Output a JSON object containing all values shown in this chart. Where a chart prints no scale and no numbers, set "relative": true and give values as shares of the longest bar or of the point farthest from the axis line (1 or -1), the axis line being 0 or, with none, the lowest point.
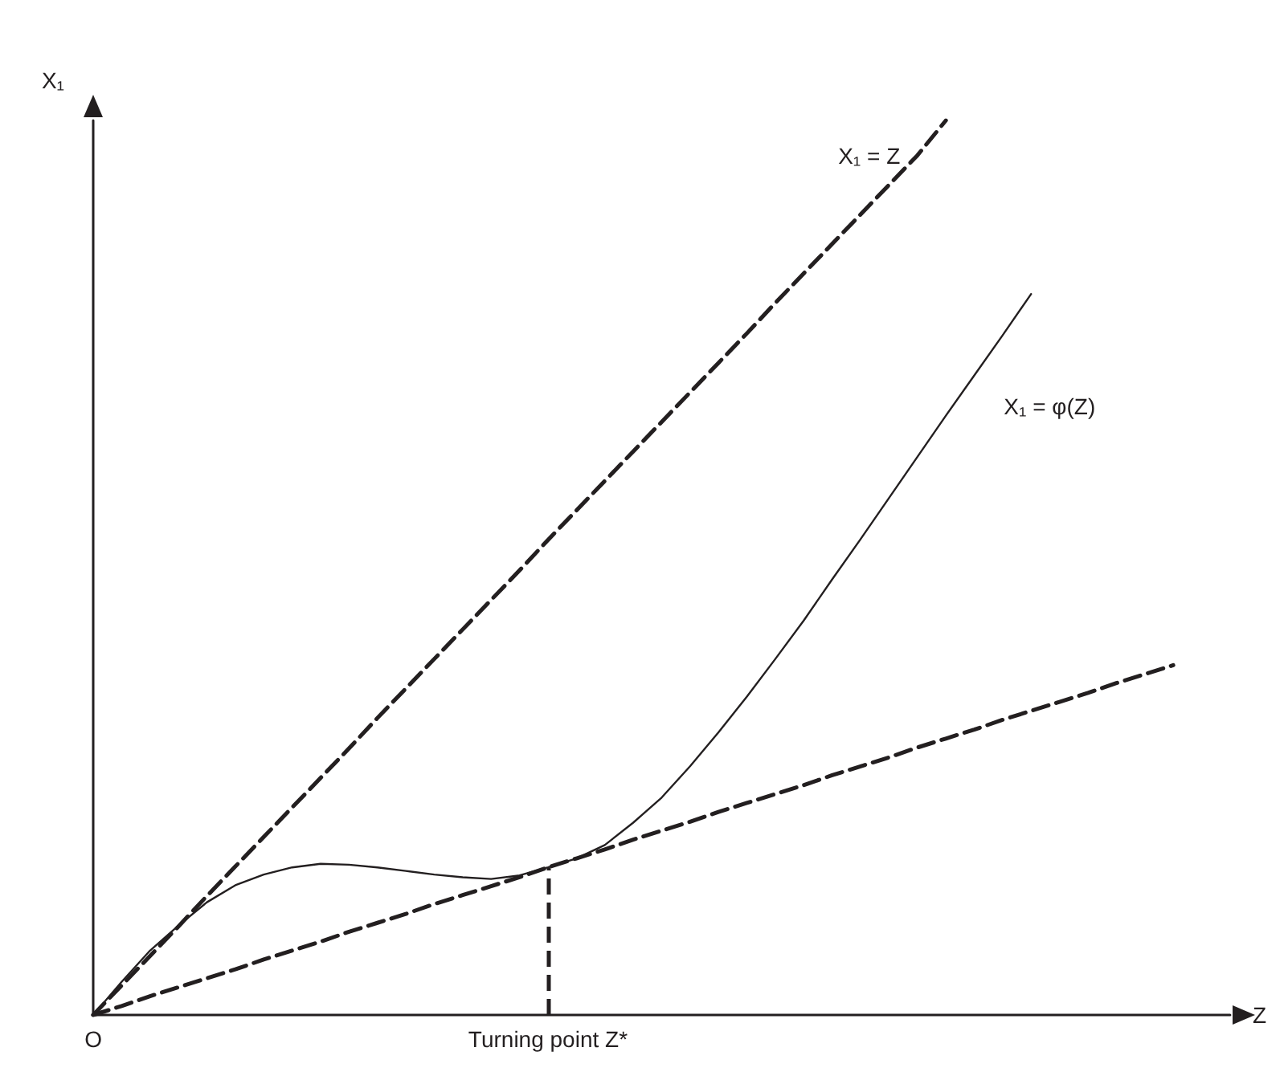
{
  "chart_data": {
    "type": "line",
    "relative": true,
    "xlabel": "Z",
    "ylabel": "X₁",
    "tick_labels": "x",
    "grid": false,
    "legend": false,
    "marker": "none",
    "categories": [
      "O",
      null,
      null,
      null,
      null,
      null,
      null,
      null,
      null,
      null,
      null,
      null,
      null,
      null,
      null,
      null,
      "Turning point Z*",
      null,
      null,
      null,
      null,
      null,
      null,
      null,
      null,
      null,
      null,
      null,
      null,
      null,
      null,
      null,
      null,
      null,
      null,
      null,
      null,
      null,
      null,
      null,
      null
    ],
    "series": [
      {
        "name": "X₁ = Z",
        "color": "#231f20",
        "line_style": "dashed",
        "values": [
          0,
          0.033,
          0.066,
          0.099,
          0.133,
          0.166,
          0.199,
          0.232,
          0.265,
          0.298,
          0.332,
          0.365,
          0.398,
          0.431,
          0.464,
          0.497,
          0.531,
          0.564,
          0.597,
          0.63,
          0.663,
          0.696,
          0.729,
          0.762,
          0.796,
          0.829,
          0.862,
          0.895,
          0.928,
          0.961,
          1,
          null,
          null,
          null,
          null,
          null,
          null,
          null,
          null,
          null,
          null
        ]
      },
      {
        "color": "#231f20",
        "line_style": "dashed",
        "values": [
          0,
          0.01,
          0.021,
          0.031,
          0.041,
          0.051,
          0.062,
          0.072,
          0.082,
          0.093,
          0.103,
          0.113,
          0.124,
          0.134,
          0.144,
          0.154,
          0.165,
          0.175,
          0.185,
          0.196,
          0.206,
          0.216,
          0.227,
          0.237,
          0.247,
          0.257,
          0.268,
          0.278,
          0.288,
          0.299,
          0.309,
          0.319,
          0.33,
          0.34,
          0.35,
          0.36,
          0.371,
          0.381,
          0.391,
          null,
          null
        ]
      },
      {
        "name": "X₁ = φ(Z)",
        "color": "#231f20",
        "line_style": "solid",
        "values": [
          0,
          0.037,
          0.072,
          0.1,
          0.126,
          0.145,
          0.157,
          0.165,
          0.169,
          0.168,
          0.165,
          0.161,
          0.157,
          0.154,
          0.152,
          0.156,
          0.165,
          0.175,
          0.19,
          0.215,
          0.243,
          0.278,
          0.316,
          0.356,
          0.398,
          0.441,
          0.487,
          0.532,
          0.578,
          0.624,
          0.67,
          0.715,
          0.76,
          0.806,
          null,
          null,
          null,
          null,
          null,
          null,
          null
        ]
      }
    ],
    "ref_lines": [
      {
        "axis": "x",
        "value": "Turning point Z*",
        "color": "#231f20",
        "line_style": "dashed"
      }
    ]
  }
}
